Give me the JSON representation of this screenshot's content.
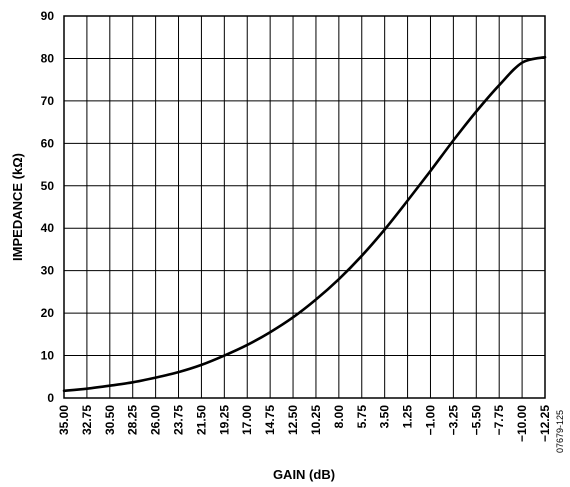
{
  "chart_data": {
    "type": "line",
    "xlabel": "GAIN (dB)",
    "ylabel": "IMPEDANCE (kΩ)",
    "figure_id": "07679-125",
    "ylim": [
      0,
      90
    ],
    "y_ticks": [
      "0",
      "10",
      "20",
      "30",
      "40",
      "50",
      "60",
      "70",
      "80",
      "90"
    ],
    "x_tick_labels": [
      "35.00",
      "32.75",
      "30.50",
      "28.25",
      "26.00",
      "23.75",
      "21.50",
      "19.25",
      "17.00",
      "14.75",
      "12.50",
      "10.25",
      "8.00",
      "5.75",
      "3.50",
      "1.25",
      "−1.00",
      "−3.25",
      "−5.50",
      "−7.75",
      "−10.00",
      "−12.25"
    ],
    "x_range_db": [
      35.0,
      -12.25
    ],
    "grid": true,
    "series": [
      {
        "x": [
          35.0,
          32.75,
          30.5,
          28.25,
          26.0,
          23.75,
          21.5,
          19.25,
          17.0,
          14.75,
          12.5,
          10.25,
          8.0,
          5.75,
          3.5,
          1.25,
          -1.0,
          -3.25,
          -5.5,
          -7.75,
          -10.0,
          -12.25
        ],
        "values": [
          1.7,
          2.2,
          2.9,
          3.7,
          4.8,
          6.1,
          7.8,
          10.0,
          12.5,
          15.5,
          19.0,
          23.2,
          28.0,
          33.5,
          39.7,
          46.5,
          53.5,
          60.7,
          67.5,
          73.7,
          79.0,
          80.3
        ]
      }
    ]
  }
}
